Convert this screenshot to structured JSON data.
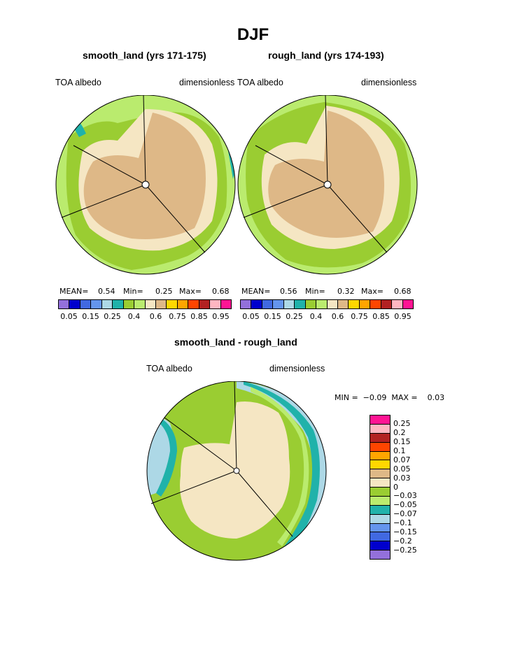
{
  "title": "DJF",
  "panels": [
    {
      "title": "smooth_land (yrs 171-175)",
      "left_label": "TOA albedo",
      "right_label": "dimensionless",
      "mean_label": "MEAN=",
      "mean_value": "0.54",
      "min_label": "Min=",
      "min_value": "0.25",
      "max_label": "Max=",
      "max_value": "0.68"
    },
    {
      "title": "rough_land (yrs 174-193)",
      "left_label": "TOA albedo",
      "right_label": "dimensionless",
      "mean_label": "MEAN=",
      "mean_value": "0.56",
      "min_label": "Min=",
      "min_value": "0.32",
      "max_label": "Max=",
      "max_value": "0.68"
    },
    {
      "title": "smooth_land - rough_land",
      "left_label": "TOA albedo",
      "right_label": "dimensionless",
      "minmax_text": "MIN =  −0.09  MAX =    0.03"
    }
  ],
  "colorbar_top": {
    "colors": [
      "#9370DB",
      "#0000CD",
      "#4169E1",
      "#6495ED",
      "#ADD8E6",
      "#20B2AA",
      "#9ACD32",
      "#BAEB6E",
      "#F5E6C3",
      "#DEB887",
      "#FFD700",
      "#FFA500",
      "#FF4500",
      "#B22222",
      "#FFB6C1",
      "#FF1493"
    ],
    "tick_labels": [
      "0.05",
      "0.15",
      "0.25",
      "0.4",
      "0.6",
      "0.75",
      "0.85",
      "0.95"
    ]
  },
  "colorbar_diff": {
    "colors": [
      "#FF1493",
      "#FFB6C1",
      "#B22222",
      "#FF4500",
      "#FFA500",
      "#FFD700",
      "#DEB887",
      "#F5E6C3",
      "#9ACD32",
      "#BAEB6E",
      "#20B2AA",
      "#ADD8E6",
      "#6495ED",
      "#4169E1",
      "#0000CD",
      "#9370DB"
    ],
    "tick_labels": [
      "0.25",
      "0.2",
      "0.15",
      "0.1",
      "0.07",
      "0.05",
      "0.03",
      "0",
      "−0.03",
      "−0.05",
      "−0.07",
      "−0.1",
      "−0.15",
      "−0.2",
      "−0.25"
    ]
  },
  "chart_data": [
    {
      "type": "heatmap",
      "title": "smooth_land (yrs 171-175)",
      "variable": "TOA albedo",
      "units": "dimensionless",
      "mean": 0.54,
      "min": 0.25,
      "max": 0.68,
      "levels": [
        0.05,
        0.15,
        0.25,
        0.4,
        0.6,
        0.75,
        0.85,
        0.95
      ]
    },
    {
      "type": "heatmap",
      "title": "rough_land (yrs 174-193)",
      "variable": "TOA albedo",
      "units": "dimensionless",
      "mean": 0.56,
      "min": 0.32,
      "max": 0.68,
      "levels": [
        0.05,
        0.15,
        0.25,
        0.4,
        0.6,
        0.75,
        0.85,
        0.95
      ]
    },
    {
      "type": "heatmap",
      "title": "smooth_land - rough_land",
      "variable": "TOA albedo",
      "units": "dimensionless",
      "min": -0.09,
      "max": 0.03,
      "levels": [
        0.25,
        0.2,
        0.15,
        0.1,
        0.07,
        0.05,
        0.03,
        0,
        -0.03,
        -0.05,
        -0.07,
        -0.1,
        -0.15,
        -0.2,
        -0.25
      ]
    }
  ]
}
